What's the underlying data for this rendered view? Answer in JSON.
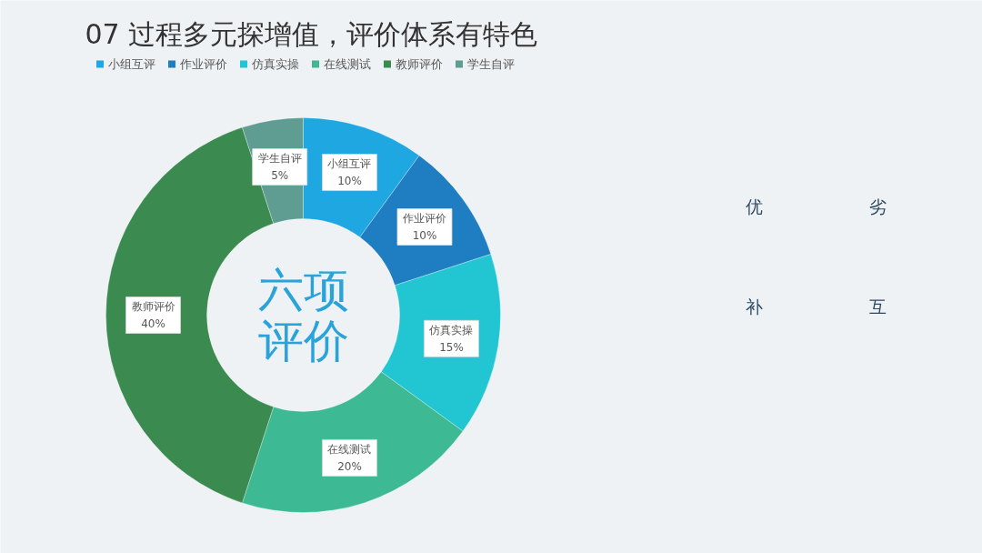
{
  "chart_data": {
    "type": "donut",
    "title": "07 过程多元探增值，评价体系有特色",
    "categories": [
      "小组互评",
      "作业评价",
      "仿真实操",
      "在线测试",
      "教师评价",
      "学生自评"
    ],
    "values": [
      10,
      10,
      15,
      20,
      40,
      5
    ],
    "value_labels": [
      "10%",
      "10%",
      "15%",
      "20%",
      "40%",
      "5%"
    ],
    "colors": [
      "#1ea7e0",
      "#1f7dc2",
      "#22c6d2",
      "#3dba93",
      "#3b8a50",
      "#5f9d92"
    ],
    "legend": "top left",
    "annotations": [
      "六项",
      "评价",
      "优",
      "劣",
      "补",
      "互"
    ]
  }
}
